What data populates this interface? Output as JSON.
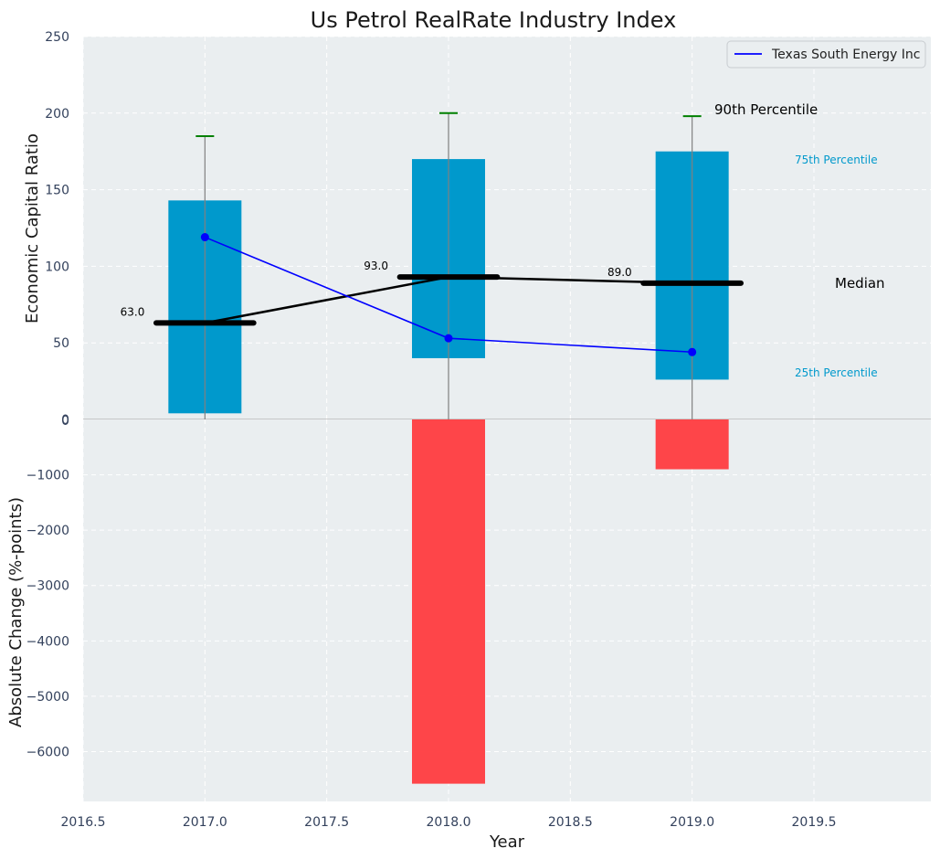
{
  "chart_data": {
    "type": "bar",
    "title": "Us Petrol RealRate Industry Index",
    "xlabel": "Year",
    "x_ticks": [
      "2016.5",
      "2017.0",
      "2017.5",
      "2018.0",
      "2018.5",
      "2019.0",
      "2019.5"
    ],
    "x_tick_values": [
      2016.5,
      2017.0,
      2017.5,
      2018.0,
      2018.5,
      2019.0,
      2019.5
    ],
    "xlim": [
      2016.5,
      2019.98
    ],
    "top_panel": {
      "ylabel": "Economic Capital Ratio",
      "ylim": [
        0,
        250
      ],
      "y_ticks": [
        "0",
        "50",
        "100",
        "150",
        "200",
        "250"
      ],
      "y_tick_values": [
        0,
        50,
        100,
        150,
        200,
        250
      ],
      "years": [
        2017,
        2018,
        2019
      ],
      "percentile_25": [
        4,
        40,
        26
      ],
      "percentile_75": [
        143,
        170,
        175
      ],
      "median": [
        63,
        93,
        89
      ],
      "median_labels": [
        "63.0",
        "93.0",
        "89.0"
      ],
      "percentile_90": [
        185,
        200,
        198
      ],
      "company_series": {
        "name": "Texas South Energy Inc",
        "values": [
          119,
          53,
          44
        ],
        "color": "#0000ff"
      },
      "annotations": {
        "p90": "90th Percentile",
        "p75": "75th Percentile",
        "median": "Median",
        "p25": "25th Percentile"
      },
      "legend": "Texas South Energy Inc"
    },
    "bottom_panel": {
      "ylabel": "Absolute Change (%-points)",
      "ylim": [
        -6900,
        0
      ],
      "y_ticks": [
        "0",
        "−1000",
        "−2000",
        "−3000",
        "−4000",
        "−5000",
        "−6000"
      ],
      "y_tick_values": [
        0,
        -1000,
        -2000,
        -3000,
        -4000,
        -5000,
        -6000
      ],
      "years": [
        2017,
        2018,
        2019
      ],
      "values": [
        0,
        -6580,
        -900
      ]
    },
    "colors": {
      "box": "#0099cc",
      "negative": "#ff3b3f",
      "median": "#000000",
      "p90_cap": "#008000",
      "plot_bg": "#eaeef0"
    }
  }
}
